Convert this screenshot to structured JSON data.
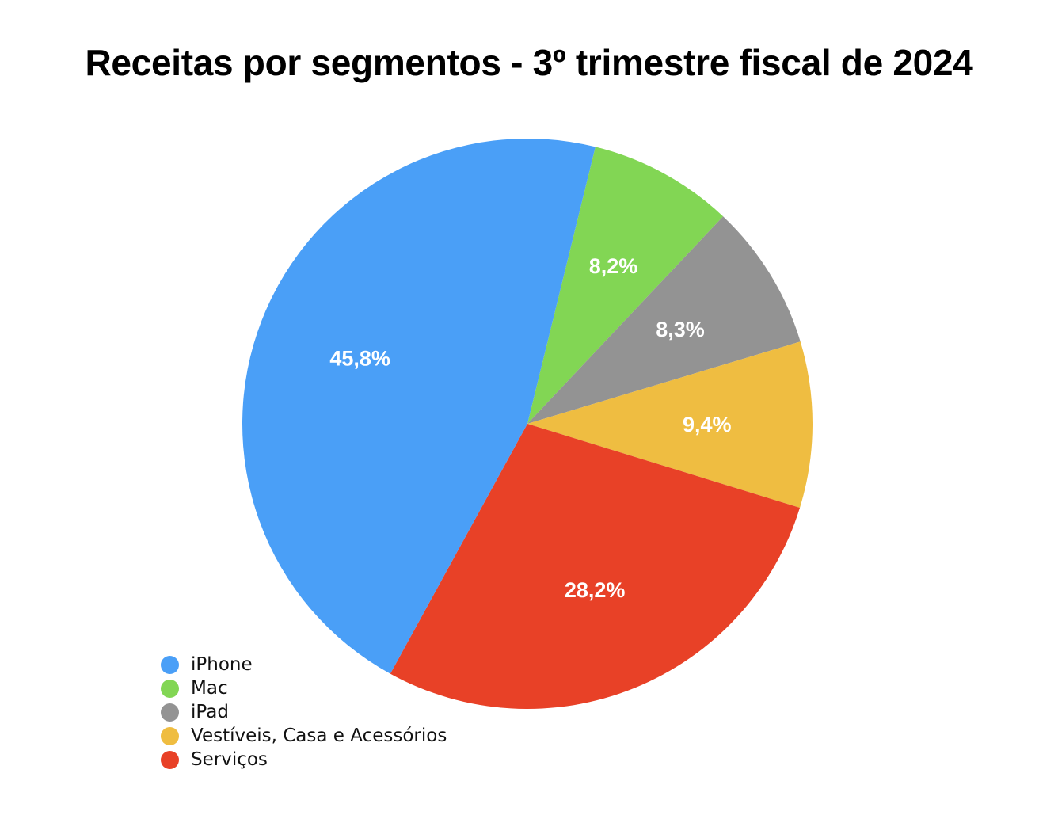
{
  "chart_data": {
    "type": "pie",
    "title": "Receitas por segmentos - 3º trimestre fiscal de 2024",
    "categories": [
      "iPhone",
      "Mac",
      "iPad",
      "Vestíveis, Casa e Acessórios",
      "Serviços"
    ],
    "values": [
      45.8,
      8.2,
      8.3,
      9.4,
      28.2
    ],
    "labels": [
      "45,8%",
      "8,2%",
      "8,3%",
      "9,4%",
      "28,2%"
    ],
    "colors": [
      "#4A9FF7",
      "#82D654",
      "#939393",
      "#EFBD41",
      "#E84127"
    ],
    "legend_position": "bottom-left",
    "start_direction": "clockwise-from-upper-right"
  }
}
